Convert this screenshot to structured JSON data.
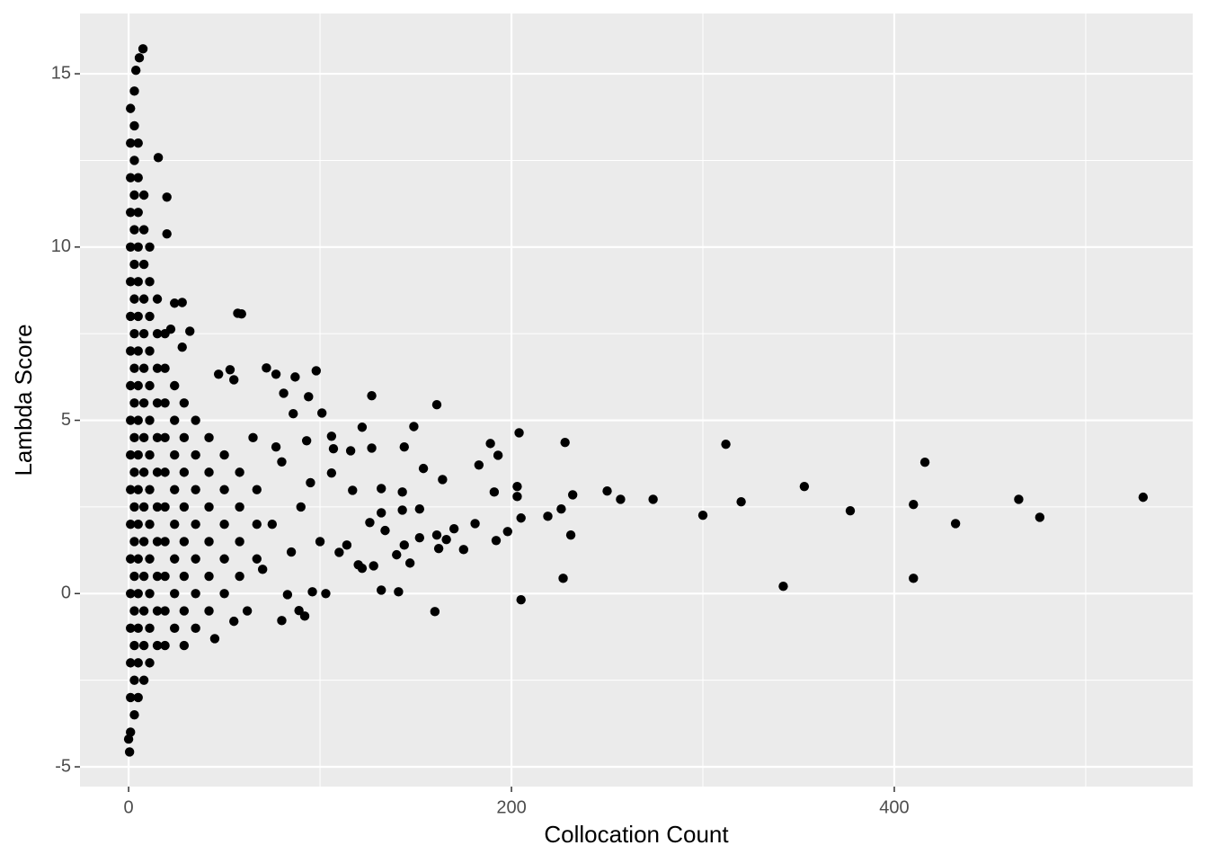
{
  "chart_data": {
    "type": "scatter",
    "x_label": "Collocation Count",
    "y_label": "Lambda Score",
    "xlim": [
      -25.4,
      555.9
    ],
    "ylim": [
      -5.57,
      16.74
    ],
    "xticks": [
      0,
      200,
      400
    ],
    "yticks": [
      -5,
      0,
      5,
      10,
      15
    ],
    "x_minor_grid": [
      100,
      300,
      500
    ],
    "y_minor_grid": [
      -2.5,
      2.5,
      7.5,
      12.5
    ],
    "grid": true,
    "background": "#ebebeb",
    "series": [
      {
        "color": "#000000",
        "x": [
          530,
          476,
          465,
          432,
          416,
          410,
          410,
          377,
          353,
          342,
          320,
          312,
          300,
          274,
          257,
          250,
          232,
          231,
          228,
          227,
          226,
          219,
          204,
          205,
          203,
          203,
          205,
          198,
          192,
          191,
          193,
          189,
          183,
          181,
          175,
          170,
          166,
          164,
          161,
          162,
          160,
          161,
          154,
          152,
          152,
          149,
          147,
          144,
          144,
          143,
          143,
          141,
          140,
          134,
          132,
          132,
          132,
          127,
          127,
          128,
          126,
          122,
          122,
          120,
          117,
          116,
          114,
          110,
          107,
          106,
          106,
          101,
          103,
          98,
          96,
          92,
          89,
          80,
          83,
          87,
          86,
          81,
          77,
          72,
          94,
          93,
          77,
          57,
          59,
          53,
          55,
          47,
          28,
          24,
          28,
          32,
          22,
          20,
          20,
          15.5,
          7.5,
          5.6,
          3.8,
          0.5,
          0,
          100,
          90,
          85,
          95,
          80,
          75,
          70,
          65,
          62,
          55,
          45,
          1,
          1,
          1,
          1,
          1,
          1,
          1,
          1,
          1,
          1,
          1,
          1,
          1,
          1,
          1,
          1,
          1,
          1,
          1,
          3,
          3,
          3,
          3,
          3,
          3,
          3,
          3,
          3,
          3,
          3,
          3,
          3,
          3,
          3,
          3,
          3,
          3,
          3,
          5,
          5,
          5,
          5,
          5,
          5,
          5,
          5,
          5,
          5,
          5,
          5,
          5,
          5,
          5,
          5,
          5,
          8,
          8,
          8,
          8,
          8,
          8,
          8,
          8,
          8,
          8,
          8,
          8,
          8,
          8,
          8,
          11,
          11,
          11,
          11,
          11,
          11,
          11,
          11,
          11,
          11,
          11,
          11,
          11,
          15,
          15,
          15,
          15,
          15,
          15,
          15,
          15,
          15,
          15,
          15,
          19,
          19,
          19,
          19,
          19,
          19,
          19,
          19,
          19,
          19,
          24,
          24,
          24,
          24,
          24,
          24,
          24,
          24,
          29,
          29,
          29,
          29,
          29,
          29,
          29,
          29,
          35,
          35,
          35,
          35,
          35,
          35,
          35,
          42,
          42,
          42,
          42,
          42,
          42,
          50,
          50,
          50,
          50,
          50,
          58,
          58,
          58,
          58,
          67,
          67,
          67
        ],
        "y": [
          2.78,
          2.2,
          2.72,
          2.02,
          3.79,
          2.57,
          0.44,
          2.39,
          3.09,
          0.21,
          2.65,
          4.31,
          2.26,
          2.72,
          2.72,
          2.96,
          2.85,
          1.69,
          4.36,
          0.44,
          2.44,
          2.23,
          4.64,
          2.18,
          2.8,
          3.09,
          -0.18,
          1.79,
          1.53,
          2.93,
          3.99,
          4.33,
          3.71,
          2.02,
          1.27,
          1.87,
          1.56,
          3.29,
          5.45,
          1.3,
          -0.52,
          1.69,
          3.61,
          1.61,
          2.44,
          4.82,
          0.88,
          4.23,
          1.4,
          2.41,
          2.93,
          0.05,
          1.12,
          1.82,
          3.03,
          0.1,
          2.33,
          5.71,
          4.2,
          0.8,
          2.05,
          4.8,
          0.73,
          0.83,
          2.98,
          4.12,
          1.4,
          1.19,
          4.18,
          3.48,
          4.54,
          5.21,
          0,
          6.43,
          0.05,
          -0.65,
          -0.49,
          -0.78,
          -0.03,
          6.25,
          5.19,
          5.78,
          6.33,
          6.51,
          5.68,
          4.41,
          4.23,
          8.09,
          8.07,
          6.46,
          6.17,
          6.33,
          8.4,
          8.38,
          7.11,
          7.57,
          7.63,
          11.44,
          10.38,
          12.58,
          15.72,
          15.46,
          15.1,
          -4.57,
          -4.2,
          1.5,
          2.5,
          1.2,
          3.2,
          3.8,
          2,
          0.7,
          4.5,
          -0.5,
          -0.8,
          -1.3,
          -4,
          -3,
          -2,
          -1,
          0,
          1,
          2,
          3,
          4,
          5,
          6,
          7,
          8,
          9,
          10,
          11,
          12,
          13,
          14,
          -3.5,
          -2.5,
          -1.5,
          -0.5,
          0.5,
          1.5,
          2.5,
          3.5,
          4.5,
          5.5,
          6.5,
          7.5,
          8.5,
          9.5,
          10.5,
          11.5,
          12.5,
          13.5,
          14.5,
          -3,
          -2,
          -1,
          0,
          1,
          2,
          3,
          4,
          5,
          6,
          7,
          8,
          9,
          10,
          11,
          12,
          13,
          -2.5,
          -1.5,
          -0.5,
          0.5,
          1.5,
          2.5,
          3.5,
          4.5,
          5.5,
          6.5,
          7.5,
          8.5,
          9.5,
          10.5,
          11.5,
          -2,
          -1,
          0,
          1,
          2,
          3,
          4,
          5,
          6,
          7,
          8,
          9,
          10,
          -1.5,
          -0.5,
          0.5,
          1.5,
          2.5,
          3.5,
          4.5,
          5.5,
          6.5,
          7.5,
          8.5,
          -1.5,
          -0.5,
          0.5,
          1.5,
          2.5,
          3.5,
          4.5,
          5.5,
          6.5,
          7.5,
          -1,
          0,
          1,
          2,
          3,
          4,
          5,
          6,
          -1.5,
          -0.5,
          0.5,
          1.5,
          2.5,
          3.5,
          4.5,
          5.5,
          -1,
          0,
          1,
          2,
          3,
          4,
          5,
          -0.5,
          0.5,
          1.5,
          2.5,
          3.5,
          4.5,
          0,
          1,
          2,
          3,
          4,
          0.5,
          1.5,
          2.5,
          3.5,
          1,
          2,
          3
        ]
      }
    ]
  }
}
